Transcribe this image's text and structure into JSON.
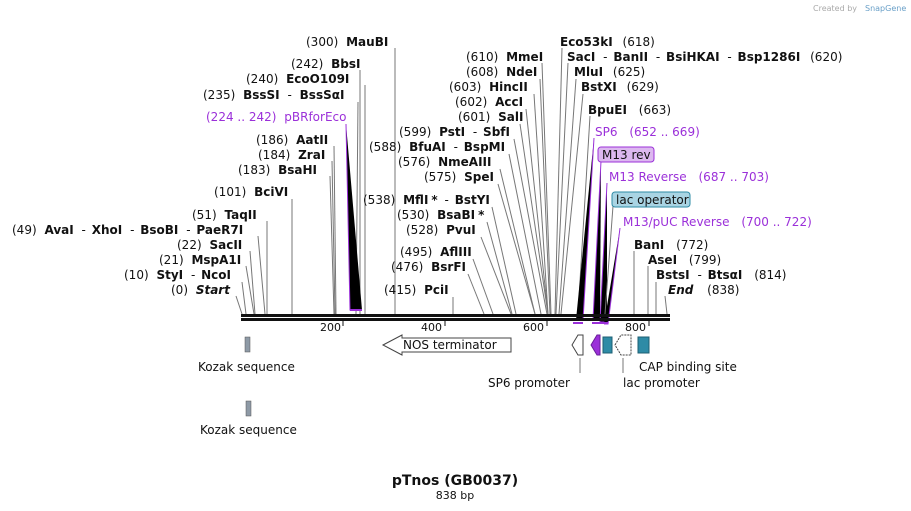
{
  "credit": {
    "created_by": "Created by",
    "brand": "SnapGene"
  },
  "title": {
    "name": "pTnos (GB0037)",
    "length": "838 bp"
  },
  "ruler": {
    "ticks": [
      "200",
      "400",
      "600",
      "800"
    ]
  },
  "sites": {
    "maubi_pos": "(300)",
    "maubi": "MauBI",
    "bbsi_pos": "(242)",
    "bbsi": "BbsI",
    "ecoo109i_pos": "(240)",
    "ecoo109i": "EcoO109I",
    "bsssi_pos": "(235)",
    "bsssi": "BssSI",
    "bsssai": "BssSαI",
    "pbr_range": "(224 .. 242)",
    "pbr": "pBRforEco",
    "aatii_pos": "(186)",
    "aatii": "AatII",
    "zrai_pos": "(184)",
    "zrai": "ZraI",
    "bsahi_pos": "(183)",
    "bsahi": "BsaHI",
    "bcivi_pos": "(101)",
    "bcivi": "BciVI",
    "taqii_pos": "(51)",
    "taqii": "TaqII",
    "avai_pos": "(49)",
    "avai": "AvaI",
    "xhoi": "XhoI",
    "bsobi": "BsoBI",
    "paer7i": "PaeR7I",
    "sacii_pos": "(22)",
    "sacii": "SacII",
    "mspa1i_pos": "(21)",
    "mspa1i": "MspA1I",
    "styi_pos": "(10)",
    "styi": "StyI",
    "ncoi": "NcoI",
    "start_pos": "(0)",
    "start": "Start",
    "mmei_pos": "(610)",
    "mmei": "MmeI",
    "ndei_pos": "(608)",
    "ndei": "NdeI",
    "hincii_pos": "(603)",
    "hincii": "HincII",
    "acci_pos": "(602)",
    "acci": "AccI",
    "sali_pos": "(601)",
    "sali": "SalI",
    "psti_pos": "(599)",
    "psti": "PstI",
    "sbfi": "SbfI",
    "bfuai_pos": "(588)",
    "bfuai": "BfuAI",
    "bspmi": "BspMI",
    "nmeaiii_pos": "(576)",
    "nmeaiii": "NmeAIII",
    "spei_pos": "(575)",
    "spei": "SpeI",
    "mfli_pos": "(538)",
    "mfli": "MflI",
    "star": "*",
    "bstyi": "BstYI",
    "bsabi_pos": "(530)",
    "bsabi": "BsaBI",
    "pvui_pos": "(528)",
    "pvui": "PvuI",
    "afliii_pos": "(495)",
    "afliii": "AflIII",
    "bsrfi_pos": "(476)",
    "bsrfi": "BsrFI",
    "pcii_pos": "(415)",
    "pcii": "PciI",
    "eco53ki": "Eco53kI",
    "eco53ki_pos": "(618)",
    "saci": "SacI",
    "banii": "BanII",
    "bsihkai": "BsiHKAI",
    "bsp1286i": "Bsp1286I",
    "saci_pos": "(620)",
    "mlui": "MluI",
    "mlui_pos": "(625)",
    "bstxi": "BstXI",
    "bstxi_pos": "(629)",
    "bpuei": "BpuEI",
    "bpuei_pos": "(663)",
    "sp6": "SP6",
    "sp6_range": "(652 .. 669)",
    "m13rev": "M13 rev",
    "m13reverse": "M13 Reverse",
    "m13reverse_range": "(687 .. 703)",
    "lacop": "lac operator",
    "m13puc": "M13/pUC Reverse",
    "m13puc_range": "(700 .. 722)",
    "bani": "BanI",
    "bani_pos": "(772)",
    "asei": "AseI",
    "asei_pos": "(799)",
    "bsti": "BstsI",
    "btsai": "BtsαI",
    "bsti_pos": "(814)",
    "end": "End",
    "end_pos": "(838)",
    "dash": "-"
  },
  "features": {
    "kozak1": "Kozak sequence",
    "kozak2": "Kozak sequence",
    "nos": "NOS terminator",
    "sp6prom": "SP6 promoter",
    "lacprom": "lac promoter",
    "cap": "CAP binding site"
  },
  "colors": {
    "purple": "#9b30d9",
    "teal": "#2e8ba6",
    "gray": "#8e9aa6",
    "m13rev_bg": "#dcb8ef",
    "lacop_bg": "#a9d4e3"
  }
}
